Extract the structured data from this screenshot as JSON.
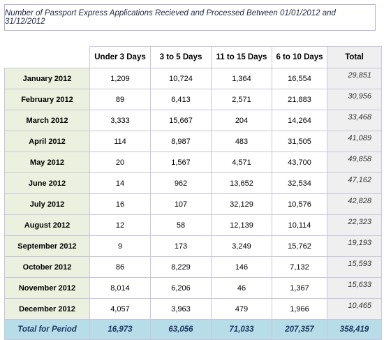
{
  "title": "Number of Passport Express Applications Recieved and Processed Between 01/01/2012 and 31/12/2012",
  "columns": [
    "Under 3 Days",
    "3 to 5 Days",
    "11 to 15 Days",
    "6 to 10 Days",
    "Total"
  ],
  "rows": [
    {
      "month": "January 2012",
      "values": [
        "1,209",
        "10,724",
        "1,364",
        "16,554"
      ],
      "total": "29,851"
    },
    {
      "month": "February 2012",
      "values": [
        "89",
        "6,413",
        "2,571",
        "21,883"
      ],
      "total": "30,956"
    },
    {
      "month": "March 2012",
      "values": [
        "3,333",
        "15,667",
        "204",
        "14,264"
      ],
      "total": "33,468"
    },
    {
      "month": "April 2012",
      "values": [
        "114",
        "8,987",
        "483",
        "31,505"
      ],
      "total": "41,089"
    },
    {
      "month": "May 2012",
      "values": [
        "20",
        "1,567",
        "4,571",
        "43,700"
      ],
      "total": "49,858"
    },
    {
      "month": "June 2012",
      "values": [
        "14",
        "962",
        "13,652",
        "32,534"
      ],
      "total": "47,162"
    },
    {
      "month": "July 2012",
      "values": [
        "16",
        "107",
        "32,129",
        "10,576"
      ],
      "total": "42,828"
    },
    {
      "month": "August 2012",
      "values": [
        "12",
        "58",
        "12,139",
        "10,114"
      ],
      "total": "22,323"
    },
    {
      "month": "September 2012",
      "values": [
        "9",
        "173",
        "3,249",
        "15,762"
      ],
      "total": "19,193"
    },
    {
      "month": "October 2012",
      "values": [
        "86",
        "8,229",
        "146",
        "7,132"
      ],
      "total": "15,593"
    },
    {
      "month": "November 2012",
      "values": [
        "8,014",
        "6,206",
        "46",
        "1,367"
      ],
      "total": "15,633"
    },
    {
      "month": "December 2012",
      "values": [
        "4,057",
        "3,963",
        "479",
        "1,966"
      ],
      "total": "10,465"
    }
  ],
  "footer": {
    "label": "Total for Period",
    "values": [
      "16,973",
      "63,056",
      "71,033",
      "207,357"
    ],
    "total": "358,419"
  },
  "colors": {
    "month_bg": "#ebf1de",
    "total_bg": "#efefef",
    "footer_bg": "#b7dde8",
    "border": "#c9c5de"
  }
}
